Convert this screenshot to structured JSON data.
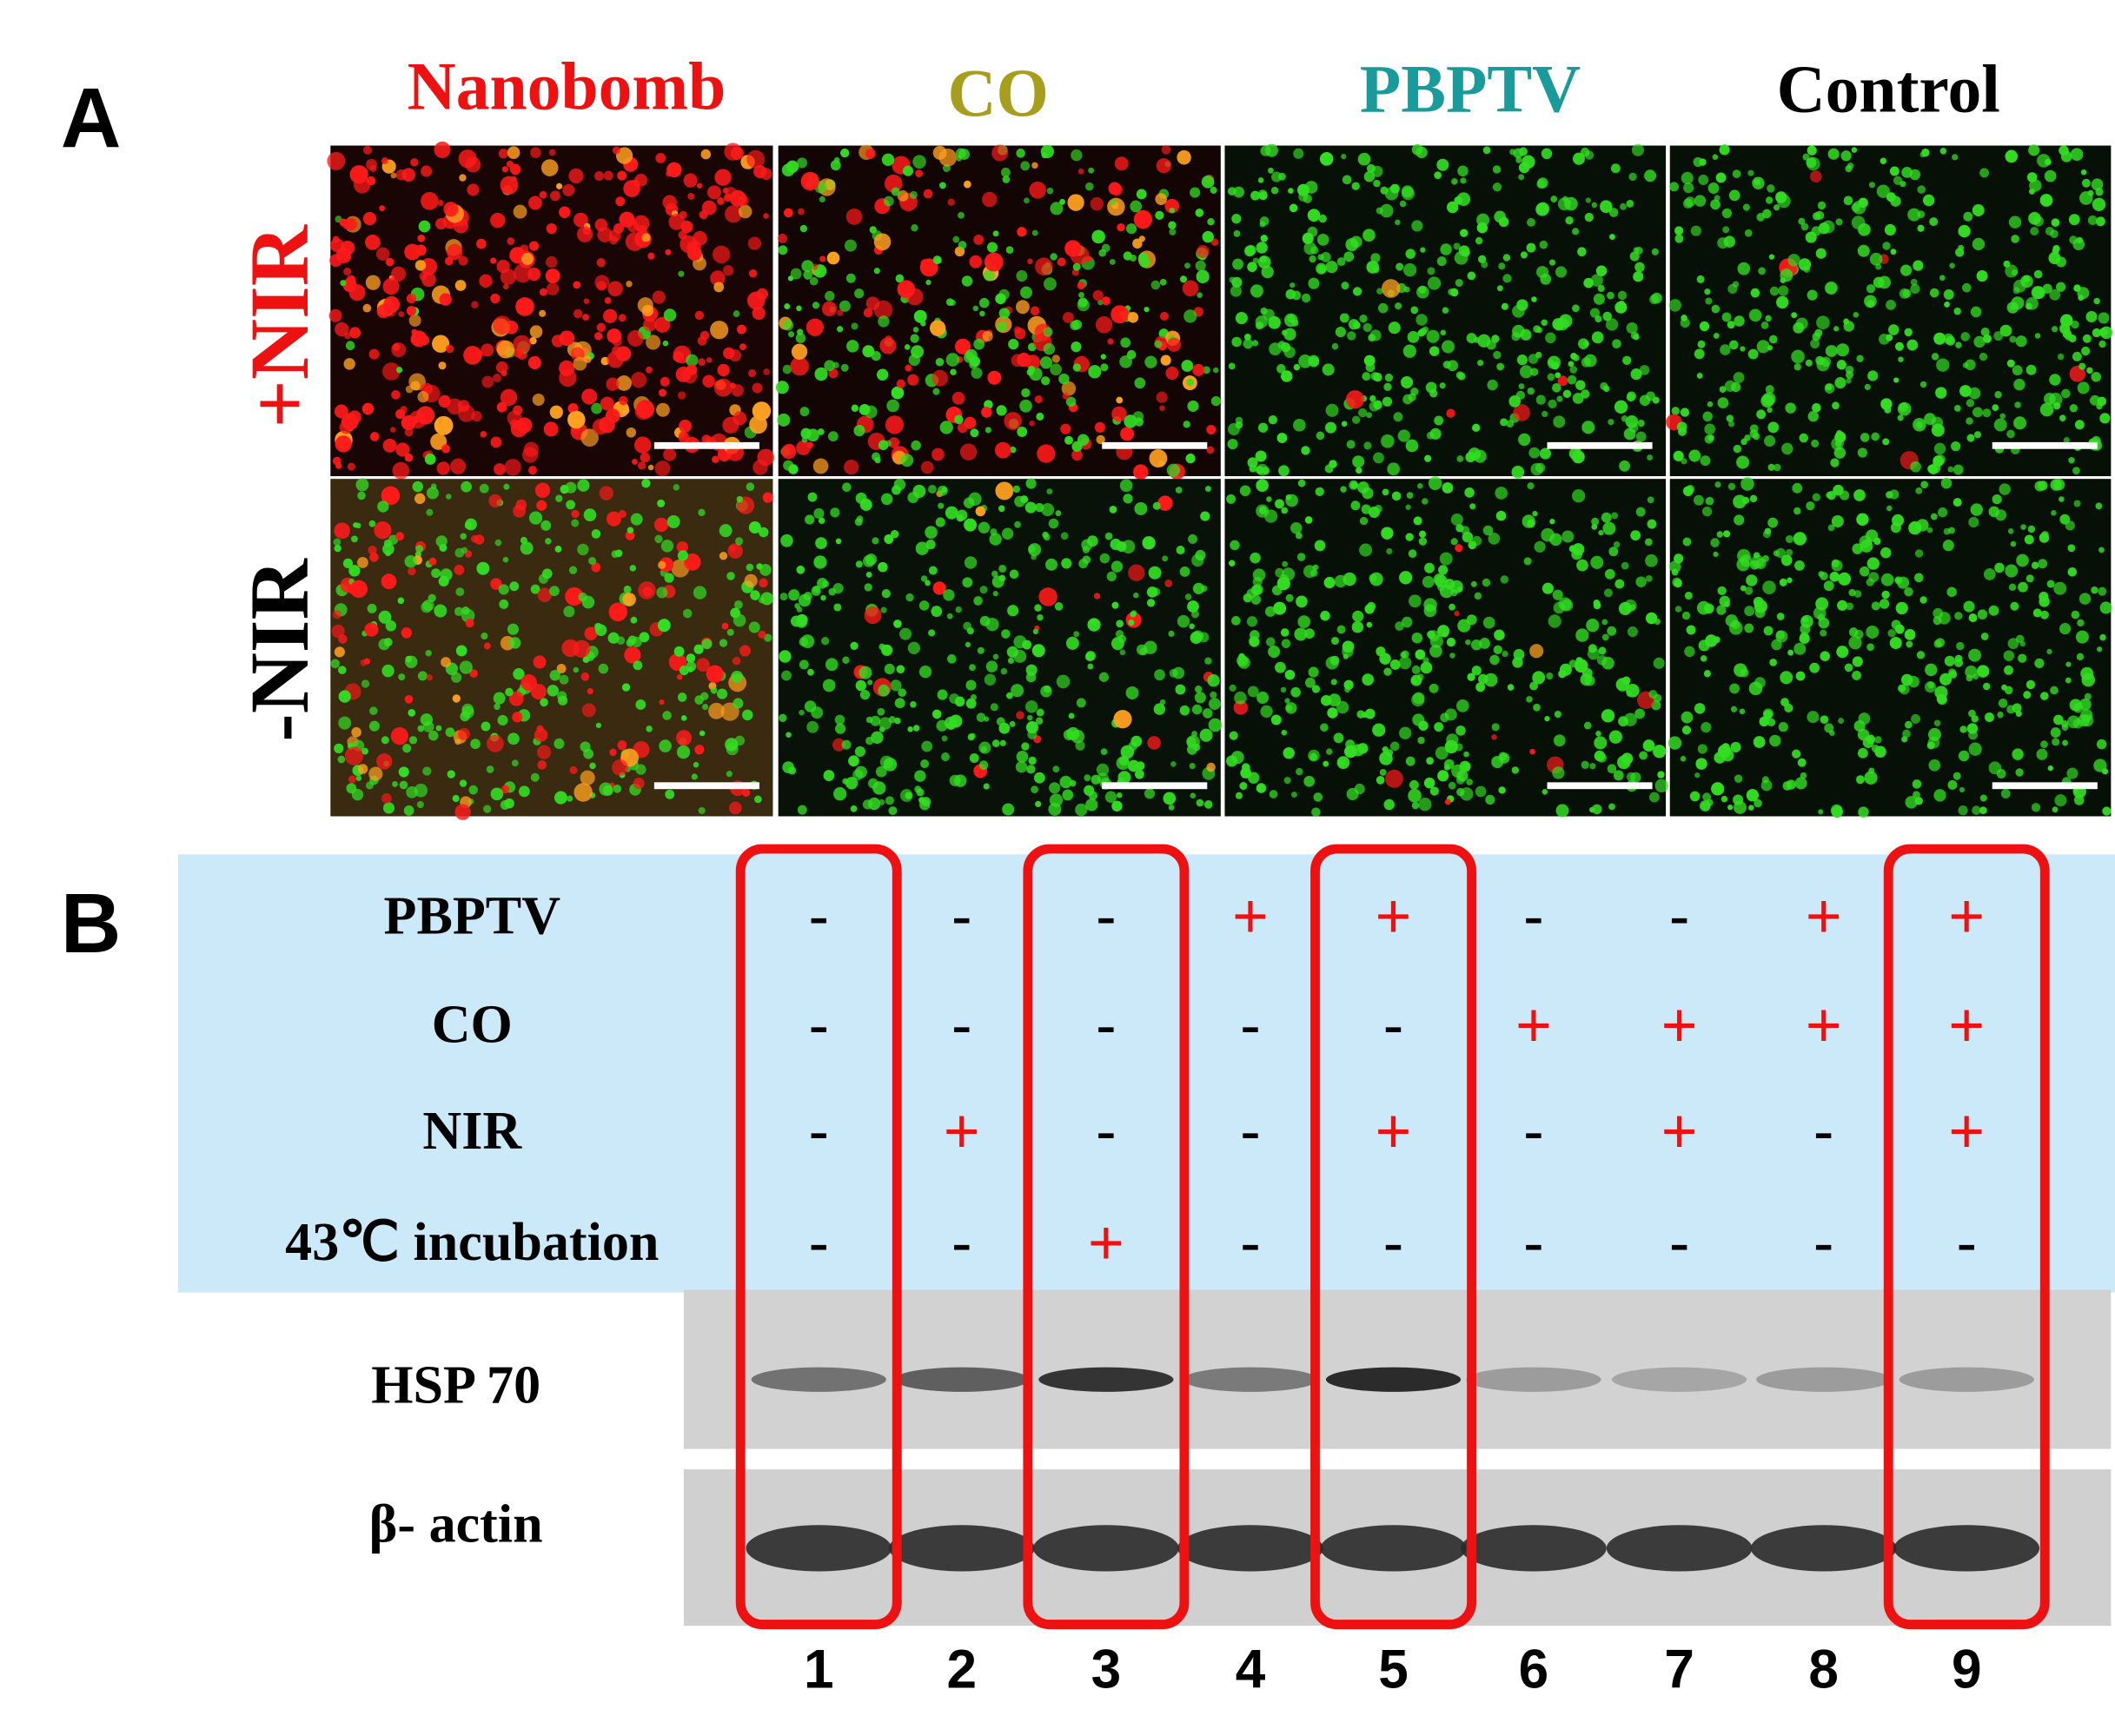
{
  "panel_a": {
    "label": "A",
    "columns": [
      "Nanobomb",
      "CO",
      "PBPTV",
      "Control"
    ],
    "rows": [
      "+NIR",
      "-NIR"
    ]
  },
  "panel_b": {
    "label": "B",
    "conditions": [
      {
        "label": "PBPTV",
        "signs": [
          "-",
          "-",
          "-",
          "+",
          "+",
          "-",
          "-",
          "+",
          "+"
        ]
      },
      {
        "label": "CO",
        "signs": [
          "-",
          "-",
          "-",
          "-",
          "-",
          "+",
          "+",
          "+",
          "+"
        ]
      },
      {
        "label": "NIR",
        "signs": [
          "-",
          "+",
          "-",
          "-",
          "+",
          "-",
          "+",
          "-",
          "+"
        ]
      },
      {
        "label": "43℃ incubation",
        "signs": [
          "-",
          "-",
          "+",
          "-",
          "-",
          "-",
          "-",
          "-",
          "-"
        ]
      }
    ],
    "bands": [
      "HSP 70",
      "β- actin"
    ],
    "lanes": [
      "1",
      "2",
      "3",
      "4",
      "5",
      "6",
      "7",
      "8",
      "9"
    ]
  }
}
